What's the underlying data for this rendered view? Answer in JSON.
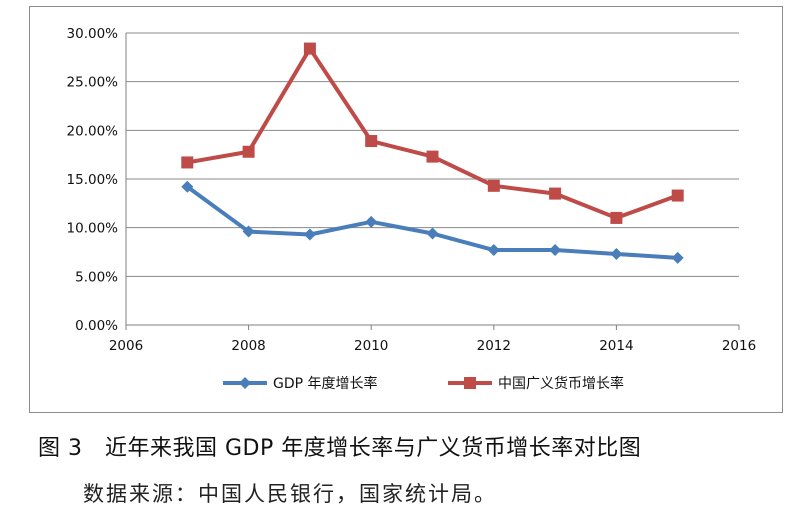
{
  "chart_data": {
    "type": "line",
    "x_ticks": [
      "2006",
      "2008",
      "2010",
      "2012",
      "2014",
      "2016"
    ],
    "y_ticks": [
      "0.00%",
      "5.00%",
      "10.00%",
      "15.00%",
      "20.00%",
      "25.00%",
      "30.00%"
    ],
    "xlim": [
      2006,
      2016
    ],
    "ylim": [
      0,
      30
    ],
    "grid": "horizontal",
    "legend_position": "bottom",
    "series": [
      {
        "name": "GDP 年度增长率",
        "color": "#4a7ebb",
        "marker": "diamond",
        "x": [
          2007,
          2008,
          2009,
          2010,
          2011,
          2012,
          2013,
          2014,
          2015
        ],
        "y": [
          14.2,
          9.6,
          9.3,
          10.6,
          9.4,
          7.7,
          7.7,
          7.3,
          6.9
        ]
      },
      {
        "name": "中国广义货币增长率",
        "color": "#be4b48",
        "marker": "square",
        "x": [
          2007,
          2008,
          2009,
          2010,
          2011,
          2012,
          2013,
          2014,
          2015
        ],
        "y": [
          16.7,
          17.8,
          28.4,
          18.9,
          17.3,
          14.3,
          13.5,
          11.0,
          13.3
        ]
      }
    ]
  },
  "caption": "图 3　近年来我国 GDP 年度增长率与广义货币增长率对比图",
  "source": "数据来源：中国人民银行，国家统计局。"
}
